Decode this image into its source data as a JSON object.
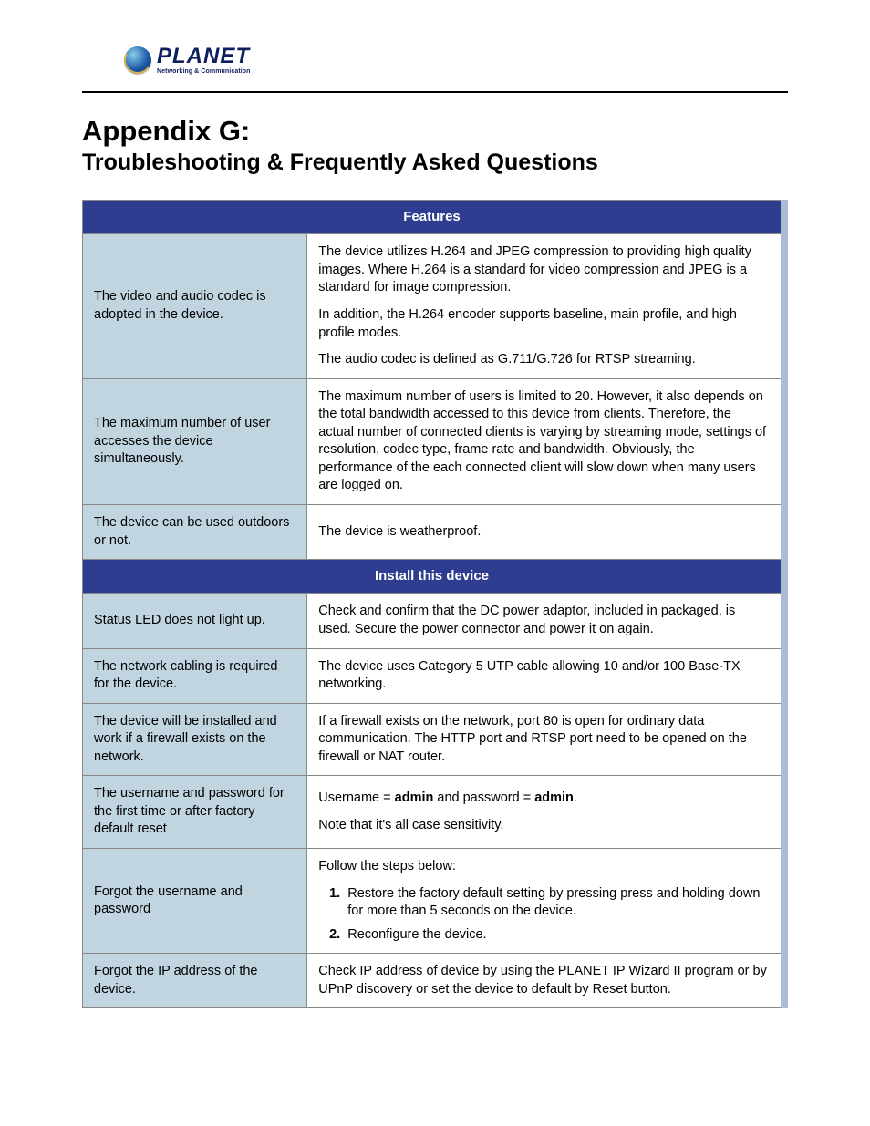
{
  "logo": {
    "word": "PLANET",
    "tagline": "Networking & Communication"
  },
  "heading": {
    "title": "Appendix G:",
    "subtitle": "Troubleshooting & Frequently Asked Questions"
  },
  "colors": {
    "section_header_bg": "#2e3d8f",
    "section_header_fg": "#ffffff",
    "question_bg": "#c0d5e0",
    "answer_bg": "#ffffff",
    "table_border": "#888888",
    "table_right_edge": "#adbbd6",
    "page_rule": "#000000",
    "logo_text": "#0d1f5e"
  },
  "typography": {
    "body_font": "Arial",
    "title_size_pt": 23,
    "subtitle_size_pt": 19,
    "cell_size_pt": 11
  },
  "table": {
    "col_widths_pct": [
      32,
      68
    ],
    "sections": [
      {
        "header": "Features",
        "rows": [
          {
            "q": "The video and audio codec is adopted in the device.",
            "a_html": "<p>The device utilizes H.264 and JPEG compression to providing high quality images. Where H.264 is a standard for video compression and JPEG is a standard for image compression.</p><p>In addition, the H.264 encoder supports baseline, main profile, and high profile modes.</p><p>The audio codec is defined as G.711/G.726 for RTSP streaming.</p>"
          },
          {
            "q": "The maximum number of user accesses the device simultaneously.",
            "a_html": "<p>The maximum number of users is limited to 20. However, it also depends on the total bandwidth accessed to this device from clients. Therefore, the actual number of connected clients is varying by streaming mode, settings of resolution, codec type, frame rate and bandwidth. Obviously, the performance of the each connected client will slow down when many users are logged on.</p>"
          },
          {
            "q": "The device can be used outdoors or not.",
            "a_html": "<p>The device is weatherproof.</p>"
          }
        ]
      },
      {
        "header": "Install this device",
        "rows": [
          {
            "q": "Status LED does not light up.",
            "a_html": "<p>Check and confirm that the DC power adaptor, included in packaged, is used. Secure the power connector and power it on again.</p>"
          },
          {
            "q": "The network cabling is required for the device.",
            "a_html": "<p>The device uses Category 5 UTP cable allowing 10 and/or 100 Base-TX networking.</p>"
          },
          {
            "q": "The device will be installed and work if a firewall exists on the network.",
            "a_html": "<p>If a firewall exists on the network, port 80 is open for ordinary data communication. The HTTP port and RTSP port need to be opened on the firewall or NAT router.</p>"
          },
          {
            "q": "The username and password for the first time or after factory default reset",
            "a_html": "<p>Username = <b>admin</b> and password = <b>admin</b>.</p><p>Note that it's all case sensitivity.</p>"
          },
          {
            "q": "Forgot the username and password",
            "a_html": "<p>Follow the steps below:</p><ol><li>Restore the factory default setting by pressing press and holding down for more than 5 seconds on the device.</li><li>Reconfigure the device.</li></ol>"
          },
          {
            "q": "Forgot the IP address of the device.",
            "a_html": "<p>Check IP address of device by using the PLANET IP Wizard II program or by UPnP discovery or set the device to default by Reset button.</p>"
          }
        ]
      }
    ]
  }
}
